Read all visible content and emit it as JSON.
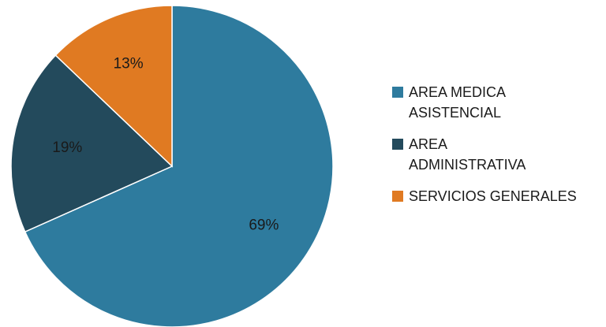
{
  "chart_data": {
    "type": "pie",
    "title": "",
    "series": [
      {
        "name": "AREA MEDICA ASISTENCIAL",
        "value": 69,
        "label": "69%",
        "color": "#2e7b9e"
      },
      {
        "name": "AREA ADMINISTRATIVA",
        "value": 19,
        "label": "19%",
        "color": "#234a5c"
      },
      {
        "name": "SERVICIOS GENERALES",
        "value": 13,
        "label": "13%",
        "color": "#e07a22"
      }
    ],
    "start_angle_deg": 0,
    "direction": "clockwise",
    "legend_position": "right"
  }
}
